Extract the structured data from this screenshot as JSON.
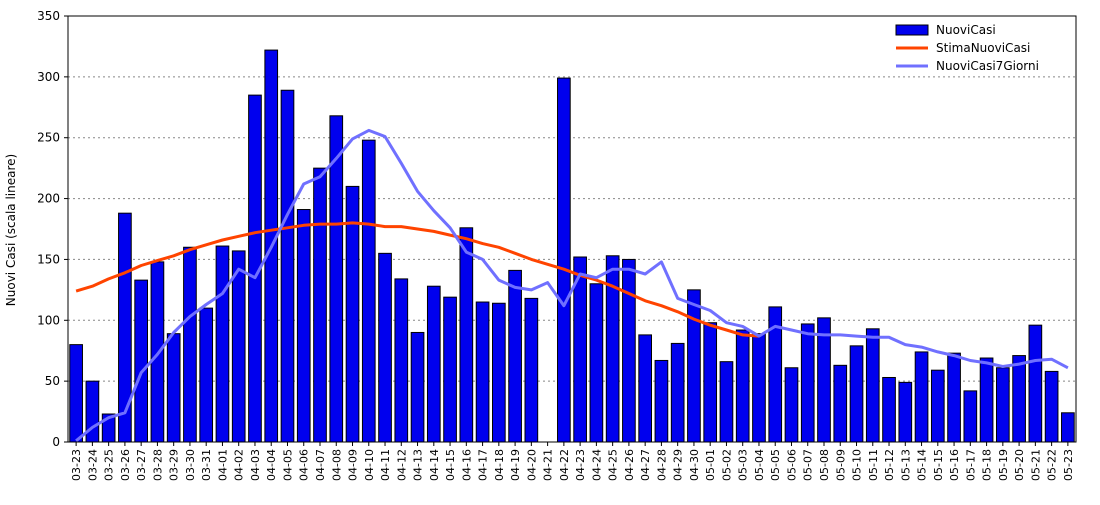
{
  "chart_data": {
    "type": "bar",
    "ylabel": "Nuovi Casi (scala lineare)",
    "ylim": [
      0,
      350
    ],
    "yticks": [
      0,
      50,
      100,
      150,
      200,
      250,
      300,
      350
    ],
    "grid": true,
    "legend_position": "top-right",
    "categories": [
      "03-23",
      "03-24",
      "03-25",
      "03-26",
      "03-27",
      "03-28",
      "03-29",
      "03-30",
      "03-31",
      "04-01",
      "04-02",
      "04-03",
      "04-04",
      "04-05",
      "04-06",
      "04-07",
      "04-08",
      "04-09",
      "04-10",
      "04-11",
      "04-12",
      "04-13",
      "04-14",
      "04-15",
      "04-16",
      "04-17",
      "04-18",
      "04-19",
      "04-20",
      "04-21",
      "04-22",
      "04-23",
      "04-24",
      "04-25",
      "04-26",
      "04-27",
      "04-28",
      "04-29",
      "04-30",
      "05-01",
      "05-02",
      "05-03",
      "05-04",
      "05-05",
      "05-06",
      "05-07",
      "05-08",
      "05-09",
      "05-10",
      "05-11",
      "05-12",
      "05-13",
      "05-14",
      "05-15",
      "05-16",
      "05-17",
      "05-18",
      "05-19",
      "05-20",
      "05-21",
      "05-22",
      "05-23"
    ],
    "series": [
      {
        "name": "NuoviCasi",
        "kind": "bar",
        "color": "#0000ee",
        "values": [
          80,
          50,
          23,
          188,
          133,
          148,
          89,
          160,
          110,
          161,
          157,
          285,
          322,
          289,
          191,
          225,
          268,
          210,
          248,
          155,
          134,
          90,
          128,
          119,
          176,
          115,
          114,
          141,
          118,
          null,
          299,
          152,
          130,
          153,
          150,
          88,
          67,
          81,
          125,
          98,
          66,
          92,
          89,
          111,
          61,
          97,
          102,
          63,
          79,
          93,
          53,
          49,
          74,
          59,
          73,
          42,
          69,
          61,
          71,
          96,
          58,
          24
        ]
      },
      {
        "name": "StimaNuoviCasi",
        "kind": "line",
        "color": "#ff4400",
        "values": [
          124,
          128,
          134,
          139,
          145,
          149,
          153,
          158,
          162,
          166,
          169,
          172,
          174,
          176,
          178,
          179,
          179,
          180,
          179,
          177,
          177,
          175,
          173,
          170,
          167,
          163,
          160,
          155,
          150,
          146,
          142,
          137,
          133,
          128,
          122,
          116,
          112,
          107,
          101,
          96,
          92,
          88,
          87,
          null,
          null,
          null,
          null,
          null,
          null,
          null,
          null,
          null,
          null,
          null,
          null,
          null,
          null,
          null,
          null,
          null,
          null,
          null
        ]
      },
      {
        "name": "NuoviCasi7Giorni",
        "kind": "line",
        "color": "#7070ff",
        "values": [
          1,
          12,
          20,
          24,
          57,
          72,
          90,
          103,
          113,
          122,
          142,
          135,
          160,
          187,
          212,
          218,
          233,
          249,
          256,
          251,
          229,
          206,
          190,
          176,
          156,
          150,
          133,
          127,
          125,
          131,
          112,
          138,
          135,
          142,
          142,
          138,
          148,
          118,
          113,
          108,
          98,
          95,
          87,
          95,
          92,
          89,
          88,
          88,
          87,
          86,
          86,
          80,
          78,
          74,
          71,
          67,
          65,
          62,
          64,
          67,
          68,
          61
        ]
      }
    ]
  }
}
